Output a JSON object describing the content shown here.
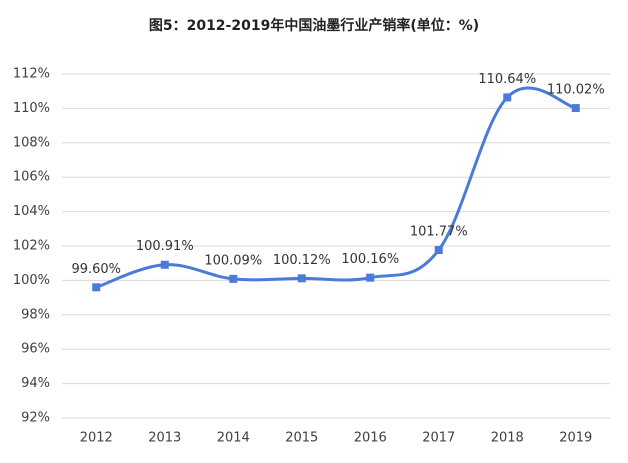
{
  "chart_data": {
    "type": "line",
    "title": "图5：2012-2019年中国油墨行业产销率(单位：%)",
    "categories": [
      "2012",
      "2013",
      "2014",
      "2015",
      "2016",
      "2017",
      "2018",
      "2019"
    ],
    "values": [
      99.6,
      100.91,
      100.09,
      100.12,
      100.16,
      101.77,
      110.64,
      110.02
    ],
    "value_labels": [
      "99.60%",
      "100.91%",
      "100.09%",
      "100.12%",
      "100.16%",
      "101.77%",
      "110.64%",
      "110.02%"
    ],
    "color": "#4a7bd8",
    "ylim": [
      92,
      112
    ],
    "yticks": [
      {
        "value": 92,
        "label": "92%"
      },
      {
        "value": 94,
        "label": "94%"
      },
      {
        "value": 96,
        "label": "96%"
      },
      {
        "value": 98,
        "label": "98%"
      },
      {
        "value": 100,
        "label": "100%"
      },
      {
        "value": 102,
        "label": "102%"
      },
      {
        "value": 104,
        "label": "104%"
      },
      {
        "value": 106,
        "label": "106%"
      },
      {
        "value": 108,
        "label": "108%"
      },
      {
        "value": 110,
        "label": "110%"
      },
      {
        "value": 112,
        "label": "112%"
      }
    ],
    "grid": true
  }
}
